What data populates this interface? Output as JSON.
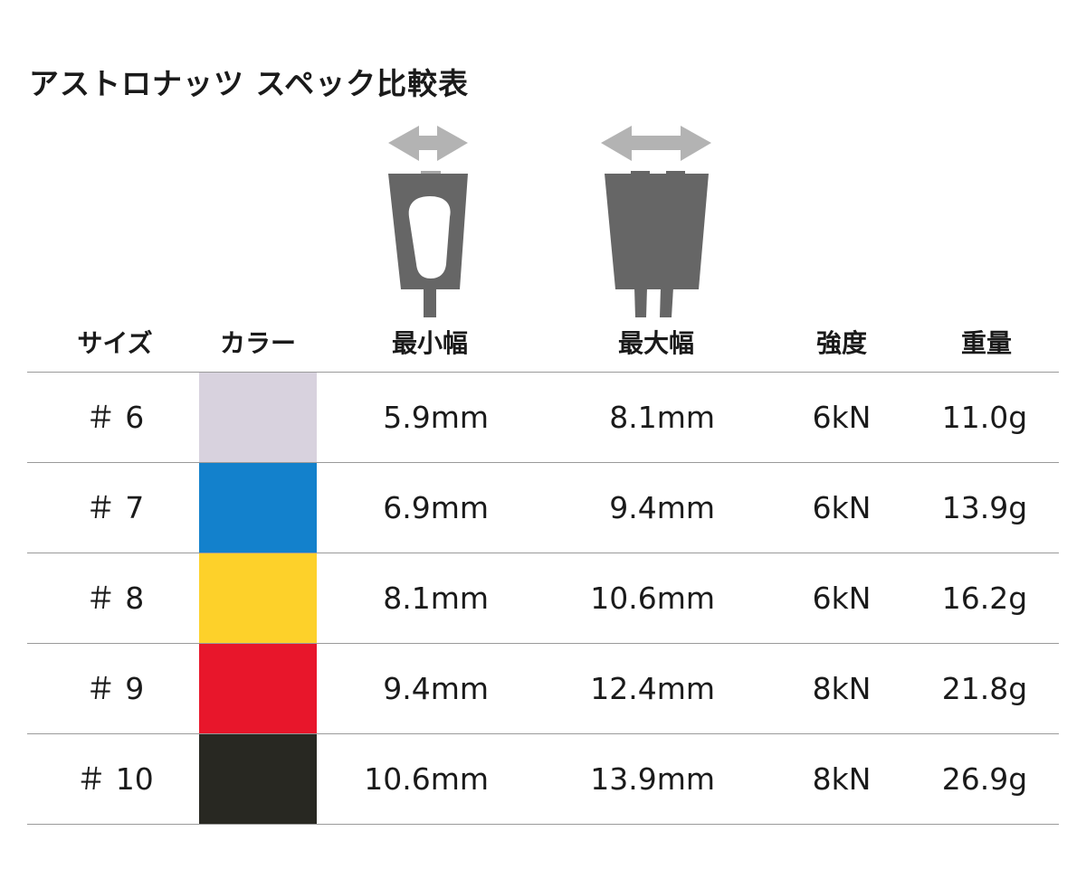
{
  "title": "アストロナッツ スペック比較表",
  "icons": {
    "min_width": "min-width-nut-diagram-icon",
    "max_width": "max-width-nut-diagram-icon",
    "body_color": "#666666",
    "arrow_color": "#b3b3b3"
  },
  "headers": {
    "size": "サイズ",
    "color": "カラー",
    "min_width": "最小幅",
    "max_width": "最大幅",
    "strength": "強度",
    "weight": "重量"
  },
  "rows": [
    {
      "size": "＃ 6",
      "color": "#d8d2de",
      "min_width": "5.9mm",
      "max_width": "8.1mm",
      "strength": "6kN",
      "weight": "11.0g"
    },
    {
      "size": "＃ 7",
      "color": "#1381cc",
      "min_width": "6.9mm",
      "max_width": "9.4mm",
      "strength": "6kN",
      "weight": "13.9g"
    },
    {
      "size": "＃ 8",
      "color": "#fdd12a",
      "min_width": "8.1mm",
      "max_width": "10.6mm",
      "strength": "6kN",
      "weight": "16.2g"
    },
    {
      "size": "＃ 9",
      "color": "#e8162b",
      "min_width": "9.4mm",
      "max_width": "12.4mm",
      "strength": "8kN",
      "weight": "21.8g"
    },
    {
      "size": "＃ 10",
      "color": "#282822",
      "min_width": "10.6mm",
      "max_width": "13.9mm",
      "strength": "8kN",
      "weight": "26.9g"
    }
  ]
}
